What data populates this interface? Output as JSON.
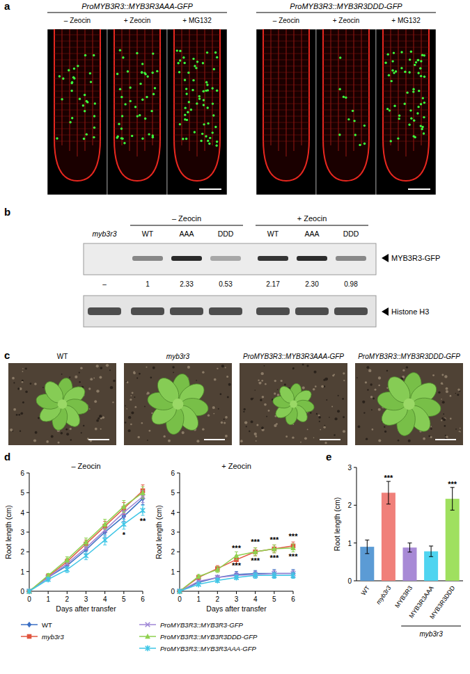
{
  "panel_labels": [
    "a",
    "b",
    "c",
    "d",
    "e"
  ],
  "panel_a": {
    "groups": [
      {
        "label": "ProMYB3R3::MYB3R3AAA-GFP",
        "conditions": [
          "– Zeocin",
          "+ Zeocin",
          "+ MG132"
        ]
      },
      {
        "label": "ProMYB3R3::MYB3R3DDD-GFP",
        "conditions": [
          "– Zeocin",
          "+ Zeocin",
          "+ MG132"
        ]
      }
    ]
  },
  "panel_b": {
    "groups": [
      {
        "label": "– Zeocin",
        "start": 1,
        "end": 3
      },
      {
        "label": "+ Zeocin",
        "start": 4,
        "end": 6
      }
    ],
    "lanes": [
      {
        "label": "myb3r3",
        "quant": null,
        "quant_label": "–"
      },
      {
        "label": "WT",
        "quant": 1,
        "quant_label": "1"
      },
      {
        "label": "AAA",
        "quant": 2.33,
        "quant_label": "2.33"
      },
      {
        "label": "DDD",
        "quant": 0.53,
        "quant_label": "0.53"
      },
      {
        "label": "WT",
        "quant": 2.17,
        "quant_label": "2.17"
      },
      {
        "label": "AAA",
        "quant": 2.3,
        "quant_label": "2.30"
      },
      {
        "label": "DDD",
        "quant": 0.98,
        "quant_label": "0.98"
      }
    ],
    "bands": [
      "MYB3R3-GFP",
      "Histone H3"
    ]
  },
  "panel_c": {
    "labels": [
      "WT",
      "myb3r3",
      "ProMYB3R3::MYB3R3AAA-GFP",
      "ProMYB3R3::MYB3R3DDD-GFP"
    ]
  },
  "chart_data": [
    {
      "type": "line",
      "title": "– Zeocin",
      "x": [
        0,
        1,
        2,
        3,
        4,
        5,
        6
      ],
      "xlim": [
        0,
        6
      ],
      "xticks": [
        0,
        1,
        2,
        3,
        4,
        5,
        6
      ],
      "ylim": [
        0,
        6
      ],
      "yticks": [
        0,
        1,
        2,
        3,
        4,
        5,
        6
      ],
      "x_label": "Days after transfer",
      "y_label": "Root length (cm)",
      "legend": "bottom",
      "series": [
        {
          "name": "WT",
          "color": "#3b6fc4",
          "marker": "diamond",
          "values": [
            0,
            0.7,
            1.3,
            2.1,
            3.0,
            3.8,
            4.7
          ],
          "errors": [
            0,
            0.1,
            0.15,
            0.2,
            0.25,
            0.25,
            0.3
          ]
        },
        {
          "name": "myb3r3",
          "color": "#e0553f",
          "marker": "square",
          "values": [
            0,
            0.75,
            1.5,
            2.4,
            3.3,
            4.2,
            5.1
          ],
          "errors": [
            0,
            0.1,
            0.15,
            0.2,
            0.25,
            0.3,
            0.3
          ]
        },
        {
          "name": "ProMYB3R3::MYB3R3-GFP",
          "color": "#9f86d6",
          "marker": "cross",
          "values": [
            0,
            0.7,
            1.4,
            2.2,
            3.1,
            4.0,
            4.8
          ],
          "errors": [
            0,
            0.1,
            0.15,
            0.2,
            0.25,
            0.25,
            0.3
          ]
        },
        {
          "name": "ProMYB3R3::MYB3R3DDD-GFP",
          "color": "#8fd14f",
          "marker": "triangle",
          "values": [
            0,
            0.8,
            1.6,
            2.5,
            3.4,
            4.3,
            5.0
          ],
          "errors": [
            0,
            0.1,
            0.15,
            0.2,
            0.25,
            0.3,
            0.3
          ]
        },
        {
          "name": "ProMYB3R3::MYB3R3AAA-GFP",
          "color": "#3fc6e6",
          "marker": "star",
          "values": [
            0,
            0.6,
            1.1,
            1.8,
            2.6,
            3.4,
            4.1
          ],
          "errors": [
            0,
            0.1,
            0.15,
            0.2,
            0.25,
            0.25,
            0.25
          ]
        }
      ],
      "annotations": [
        {
          "text": "*",
          "x": 5,
          "y": 2.85
        },
        {
          "text": "**",
          "x": 6,
          "y": 3.55
        }
      ]
    },
    {
      "type": "line",
      "title": "+ Zeocin",
      "x": [
        0,
        1,
        2,
        3,
        4,
        5,
        6
      ],
      "xlim": [
        0,
        6
      ],
      "xticks": [
        0,
        1,
        2,
        3,
        4,
        5,
        6
      ],
      "ylim": [
        0,
        6
      ],
      "yticks": [
        0,
        1,
        2,
        3,
        4,
        5,
        6
      ],
      "x_label": "Days after transfer",
      "y_label": "Root length (cm)",
      "series": [
        {
          "name": "WT",
          "color": "#3b6fc4",
          "marker": "diamond",
          "values": [
            0,
            0.45,
            0.7,
            0.85,
            0.9,
            0.9,
            0.9
          ],
          "errors": [
            0,
            0.05,
            0.1,
            0.15,
            0.15,
            0.2,
            0.2
          ]
        },
        {
          "name": "myb3r3",
          "color": "#e0553f",
          "marker": "square",
          "values": [
            0,
            0.7,
            1.15,
            1.6,
            2.0,
            2.15,
            2.3
          ],
          "errors": [
            0,
            0.1,
            0.15,
            0.2,
            0.2,
            0.2,
            0.2
          ]
        },
        {
          "name": "ProMYB3R3::MYB3R3-GFP",
          "color": "#9f86d6",
          "marker": "cross",
          "values": [
            0,
            0.5,
            0.7,
            0.8,
            0.85,
            0.9,
            0.9
          ],
          "errors": [
            0,
            0.05,
            0.1,
            0.15,
            0.15,
            0.15,
            0.15
          ]
        },
        {
          "name": "ProMYB3R3::MYB3R3DDD-GFP",
          "color": "#8fd14f",
          "marker": "triangle",
          "values": [
            0,
            0.75,
            1.1,
            1.8,
            2.0,
            2.15,
            2.2
          ],
          "errors": [
            0,
            0.1,
            0.15,
            0.2,
            0.2,
            0.2,
            0.2
          ]
        },
        {
          "name": "ProMYB3R3::MYB3R3AAA-GFP",
          "color": "#3fc6e6",
          "marker": "star",
          "values": [
            0,
            0.35,
            0.55,
            0.7,
            0.8,
            0.8,
            0.8
          ],
          "errors": [
            0,
            0.05,
            0.1,
            0.1,
            0.15,
            0.15,
            0.15
          ]
        }
      ],
      "annotations": [
        {
          "text": "***",
          "x": 3,
          "y": 2.2
        },
        {
          "text": "***",
          "x": 4,
          "y": 2.5
        },
        {
          "text": "***",
          "x": 5,
          "y": 2.6
        },
        {
          "text": "***",
          "x": 6,
          "y": 2.8
        },
        {
          "text": "***",
          "x": 3,
          "y": 1.3
        },
        {
          "text": "***",
          "x": 4,
          "y": 1.55
        },
        {
          "text": "***",
          "x": 5,
          "y": 1.7
        },
        {
          "text": "***",
          "x": 6,
          "y": 1.75
        }
      ]
    },
    {
      "type": "bar",
      "categories": [
        "WT",
        "myb3r3",
        "MYB3R3",
        "MYB3R3AAA",
        "MYB3R3DDD"
      ],
      "values": [
        0.9,
        2.33,
        0.88,
        0.78,
        2.17
      ],
      "errors": [
        0.18,
        0.3,
        0.12,
        0.14,
        0.3
      ],
      "colors": [
        "#5b9bd5",
        "#f0807a",
        "#a88ad6",
        "#4fd4f0",
        "#9fe05f"
      ],
      "ylim": [
        0,
        3
      ],
      "yticks": [
        0,
        1,
        2,
        3
      ],
      "y_label": "Root length (cm)",
      "annotations": [
        {
          "text": "***",
          "x": "myb3r3",
          "y": 2.72
        },
        {
          "text": "***",
          "x": "MYB3R3DDD",
          "y": 2.56
        }
      ],
      "group_label": {
        "text": "myb3r3",
        "from": "MYB3R3",
        "to": "MYB3R3DDD"
      }
    }
  ]
}
